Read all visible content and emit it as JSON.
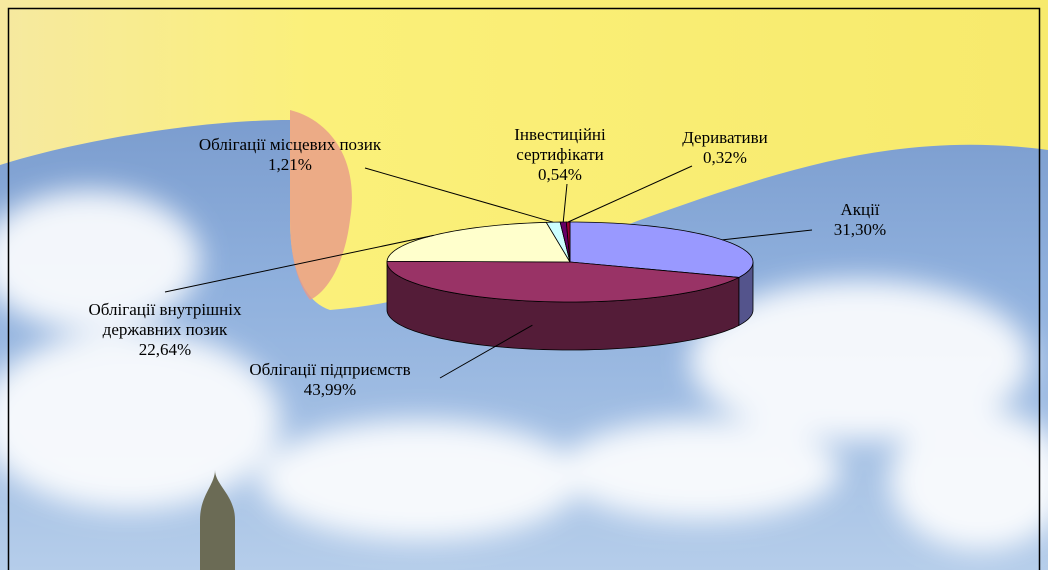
{
  "chart_data": {
    "type": "pie3d",
    "categories": [
      "Акції",
      "Облігації підприємств",
      "Облігації внутрішніх державних позик",
      "Облігації місцевих позик",
      "Інвестиційні сертифікати",
      "Деривативи"
    ],
    "values": [
      31.3,
      43.99,
      22.64,
      1.21,
      0.54,
      0.32
    ],
    "value_labels": [
      "31,30%",
      "43,99%",
      "22,64%",
      "1,21%",
      "0,54%",
      "0,32%"
    ],
    "colors": [
      "#9999ff",
      "#993366",
      "#ffffcc",
      "#ccffff",
      "#660066",
      "#990033"
    ]
  }
}
